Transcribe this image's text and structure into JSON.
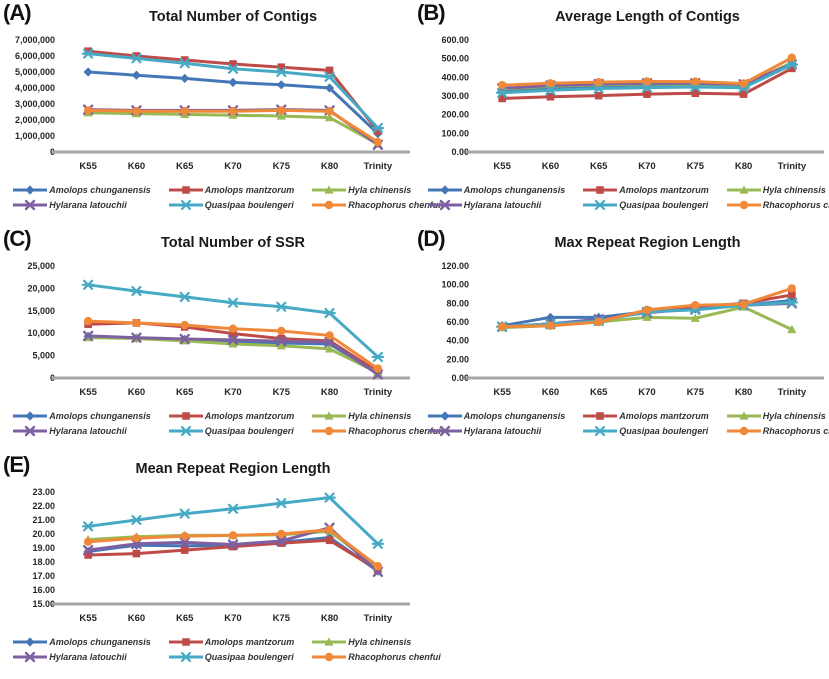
{
  "figure": {
    "background": "#ffffff",
    "axis_line_color": "#a6a6a6",
    "tick_text_color": "#262626"
  },
  "legend": {
    "position": "bottom",
    "rows": 2,
    "series_styles": [
      {
        "name": "Amolops chunganensis",
        "color": "#4577B7",
        "marker": "diamond"
      },
      {
        "name": "Amolops mantzorum",
        "color": "#BE4B48",
        "marker": "square"
      },
      {
        "name": "Hyla chinensis",
        "color": "#98B954",
        "marker": "triangle"
      },
      {
        "name": "Hylarana latouchii",
        "color": "#7D60A0",
        "marker": "x"
      },
      {
        "name": "Quasipaa boulengeri",
        "color": "#46AAC5",
        "marker": "asterisk"
      },
      {
        "name": "Rhacophorus chenfui",
        "color": "#F0883A",
        "marker": "circle"
      }
    ]
  },
  "chart_data": [
    {
      "type": "line",
      "panel": "(A)",
      "title": "Total Number of Contigs",
      "categories": [
        "K55",
        "K60",
        "K65",
        "K70",
        "K75",
        "K80",
        "Trinity"
      ],
      "ylim": [
        0,
        7000000
      ],
      "grid": false,
      "yticks": [
        {
          "v": 0,
          "label": "0"
        },
        {
          "v": 1000000,
          "label": "1,000,000"
        },
        {
          "v": 2000000,
          "label": "2,000,000"
        },
        {
          "v": 3000000,
          "label": "3,000,000"
        },
        {
          "v": 4000000,
          "label": "4,000,000"
        },
        {
          "v": 5000000,
          "label": "5,000,000"
        },
        {
          "v": 6000000,
          "label": "6,000,000"
        },
        {
          "v": 7000000,
          "label": "7,000,000"
        }
      ],
      "series": [
        {
          "name": "Amolops chunganensis",
          "values": [
            5000000,
            4800000,
            4600000,
            4350000,
            4200000,
            4000000,
            1150000
          ]
        },
        {
          "name": "Amolops mantzorum",
          "values": [
            6300000,
            6000000,
            5750000,
            5500000,
            5300000,
            5100000,
            1300000
          ]
        },
        {
          "name": "Hyla chinensis",
          "values": [
            2450000,
            2400000,
            2350000,
            2300000,
            2250000,
            2150000,
            500000
          ]
        },
        {
          "name": "Hylarana latouchii",
          "values": [
            2650000,
            2600000,
            2600000,
            2600000,
            2650000,
            2600000,
            450000
          ]
        },
        {
          "name": "Quasipaa boulengeri",
          "values": [
            6150000,
            5850000,
            5550000,
            5200000,
            5000000,
            4700000,
            1500000
          ]
        },
        {
          "name": "Rhacophorus chenfui",
          "values": [
            2600000,
            2550000,
            2550000,
            2550000,
            2600000,
            2550000,
            620000
          ]
        }
      ]
    },
    {
      "type": "line",
      "panel": "(B)",
      "title": "Average Length of Contigs",
      "categories": [
        "K55",
        "K60",
        "K65",
        "K70",
        "K75",
        "K80",
        "Trinity"
      ],
      "ylim": [
        0,
        600
      ],
      "grid": false,
      "yticks": [
        {
          "v": 0,
          "label": "0.00"
        },
        {
          "v": 100,
          "label": "100.00"
        },
        {
          "v": 200,
          "label": "200.00"
        },
        {
          "v": 300,
          "label": "300.00"
        },
        {
          "v": 400,
          "label": "400.00"
        },
        {
          "v": 500,
          "label": "500.00"
        },
        {
          "v": 600,
          "label": "600.00"
        }
      ],
      "series": [
        {
          "name": "Amolops chunganensis",
          "values": [
            330,
            345,
            352,
            356,
            358,
            355,
            475
          ]
        },
        {
          "name": "Amolops mantzorum",
          "values": [
            287,
            296,
            302,
            310,
            315,
            310,
            448
          ]
        },
        {
          "name": "Hyla chinensis",
          "values": [
            337,
            352,
            360,
            364,
            365,
            360,
            478
          ]
        },
        {
          "name": "Hylarana latouchii",
          "values": [
            341,
            356,
            364,
            368,
            368,
            363,
            470
          ]
        },
        {
          "name": "Quasipaa boulengeri",
          "values": [
            317,
            331,
            340,
            345,
            348,
            344,
            468
          ]
        },
        {
          "name": "Rhacophorus chenfui",
          "values": [
            358,
            368,
            374,
            378,
            377,
            367,
            505
          ]
        }
      ]
    },
    {
      "type": "line",
      "panel": "(C)",
      "title": "Total Number of SSR",
      "categories": [
        "K55",
        "K60",
        "K65",
        "K70",
        "K75",
        "K80",
        "Trinity"
      ],
      "ylim": [
        0,
        25000
      ],
      "grid": false,
      "yticks": [
        {
          "v": 0,
          "label": "0"
        },
        {
          "v": 5000,
          "label": "5,000"
        },
        {
          "v": 10000,
          "label": "10,000"
        },
        {
          "v": 15000,
          "label": "15,000"
        },
        {
          "v": 20000,
          "label": "20,000"
        },
        {
          "v": 25000,
          "label": "25,000"
        }
      ],
      "series": [
        {
          "name": "Amolops chunganensis",
          "values": [
            9300,
            8900,
            8600,
            8100,
            7800,
            7600,
            1100
          ]
        },
        {
          "name": "Amolops mantzorum",
          "values": [
            12000,
            12300,
            11400,
            9900,
            8800,
            8300,
            1400
          ]
        },
        {
          "name": "Hyla chinensis",
          "values": [
            9000,
            8800,
            8300,
            7600,
            7200,
            6500,
            1200
          ]
        },
        {
          "name": "Hylarana latouchii",
          "values": [
            9400,
            9000,
            8700,
            8500,
            8200,
            8000,
            800
          ]
        },
        {
          "name": "Quasipaa boulengeri",
          "values": [
            20800,
            19400,
            18100,
            16800,
            15900,
            14500,
            4700
          ]
        },
        {
          "name": "Rhacophorus chenfui",
          "values": [
            12700,
            12300,
            11800,
            11000,
            10500,
            9500,
            2100
          ]
        }
      ]
    },
    {
      "type": "line",
      "panel": "(D)",
      "title": "Max Repeat Region Length",
      "categories": [
        "K55",
        "K60",
        "K65",
        "K70",
        "K75",
        "K80",
        "Trinity"
      ],
      "ylim": [
        0,
        120
      ],
      "grid": false,
      "yticks": [
        {
          "v": 0,
          "label": "0.00"
        },
        {
          "v": 20,
          "label": "20.00"
        },
        {
          "v": 40,
          "label": "40.00"
        },
        {
          "v": 60,
          "label": "60.00"
        },
        {
          "v": 80,
          "label": "80.00"
        },
        {
          "v": 100,
          "label": "100.00"
        },
        {
          "v": 120,
          "label": "120.00"
        }
      ],
      "series": [
        {
          "name": "Amolops chunganensis",
          "values": [
            56,
            65,
            65,
            71,
            74,
            78,
            83
          ]
        },
        {
          "name": "Amolops mantzorum",
          "values": [
            55,
            58,
            61,
            72,
            76,
            80,
            89
          ]
        },
        {
          "name": "Hyla chinensis",
          "values": [
            54,
            56,
            60,
            65,
            64,
            76,
            52
          ]
        },
        {
          "name": "Hylarana latouchii",
          "values": [
            55,
            58,
            63,
            70,
            74,
            78,
            80
          ]
        },
        {
          "name": "Quasipaa boulengeri",
          "values": [
            55,
            58,
            61,
            71,
            73,
            78,
            81
          ]
        },
        {
          "name": "Rhacophorus chenfui",
          "values": [
            55,
            56,
            60,
            73,
            78,
            79,
            96
          ]
        }
      ]
    },
    {
      "type": "line",
      "panel": "(E)",
      "title": "Mean Repeat Region Length",
      "categories": [
        "K55",
        "K60",
        "K65",
        "K70",
        "K75",
        "K80",
        "Trinity"
      ],
      "ylim": [
        15,
        23
      ],
      "grid": false,
      "yticks": [
        {
          "v": 15,
          "label": "15.00"
        },
        {
          "v": 16,
          "label": "16.00"
        },
        {
          "v": 17,
          "label": "17.00"
        },
        {
          "v": 18,
          "label": "18.00"
        },
        {
          "v": 19,
          "label": "19.00"
        },
        {
          "v": 20,
          "label": "20.00"
        },
        {
          "v": 21,
          "label": "21.00"
        },
        {
          "v": 22,
          "label": "22.00"
        },
        {
          "v": 23,
          "label": "23.00"
        }
      ],
      "series": [
        {
          "name": "Amolops chunganensis",
          "values": [
            18.75,
            19.2,
            19.15,
            19.2,
            19.4,
            19.75,
            17.35
          ]
        },
        {
          "name": "Amolops mantzorum",
          "values": [
            18.5,
            18.6,
            18.85,
            19.1,
            19.35,
            19.55,
            17.45
          ]
        },
        {
          "name": "Hyla chinensis",
          "values": [
            19.6,
            19.8,
            19.9,
            19.9,
            19.95,
            20.2,
            17.6
          ]
        },
        {
          "name": "Hylarana latouchii",
          "values": [
            18.85,
            19.3,
            19.4,
            19.25,
            19.5,
            20.45,
            17.3
          ]
        },
        {
          "name": "Quasipaa boulengeri",
          "values": [
            20.55,
            21.0,
            21.45,
            21.8,
            22.2,
            22.6,
            19.3
          ]
        },
        {
          "name": "Rhacophorus chenfui",
          "values": [
            19.45,
            19.7,
            19.85,
            19.9,
            20.0,
            20.3,
            17.7
          ]
        }
      ]
    }
  ]
}
